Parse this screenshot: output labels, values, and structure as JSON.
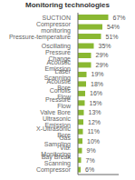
{
  "chart_data": {
    "type": "bar",
    "title": "Monitoring technologies",
    "orientation": "horizontal",
    "categories": [
      "SUCTION",
      "Compressor monitoring",
      "Pressure-temperature",
      "Oscillating",
      "Pressure Change",
      "Acoustic Emission",
      "Laser Scanning",
      "Acoustic Bore",
      "Coriolis Flow",
      "Pressure Flow",
      "Valve Bore",
      "Ultrasonic Emission",
      "X-Ultrasonic Bore",
      "Gas Sampling",
      "Vib. Monitoring",
      "Bay Break Scanning",
      "Compressor"
    ],
    "values": [
      67,
      54,
      51,
      35,
      29,
      29,
      19,
      18,
      16,
      15,
      13,
      12,
      11,
      10,
      9,
      7,
      6
    ],
    "value_labels": [
      "67%",
      "54%",
      "51%",
      "35%",
      "29%",
      "29%",
      "19%",
      "18%",
      "16%",
      "15%",
      "13%",
      "12%",
      "11%",
      "10%",
      "9%",
      "7%",
      "6%"
    ],
    "color": "#8ab832",
    "xlim": [
      0,
      90
    ],
    "data_labels": true,
    "tick_labels": "y",
    "grid": false
  }
}
